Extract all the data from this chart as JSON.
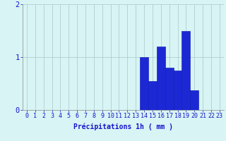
{
  "hours": [
    0,
    1,
    2,
    3,
    4,
    5,
    6,
    7,
    8,
    9,
    10,
    11,
    12,
    13,
    14,
    15,
    16,
    17,
    18,
    19,
    20,
    21,
    22,
    23
  ],
  "values": [
    0,
    0,
    0,
    0,
    0,
    0,
    0,
    0,
    0,
    0,
    0,
    0,
    0,
    0,
    1.0,
    0.55,
    1.2,
    0.8,
    0.75,
    1.5,
    0.38,
    0,
    0,
    0
  ],
  "bar_color": "#1c28d4",
  "bar_edge_color": "#0a14b4",
  "background_color": "#d8f4f4",
  "grid_color": "#aac8c8",
  "xlabel": "Précipitations 1h ( mm )",
  "ylim": [
    0,
    2.0
  ],
  "yticks": [
    0,
    1,
    2
  ],
  "xticks": [
    0,
    1,
    2,
    3,
    4,
    5,
    6,
    7,
    8,
    9,
    10,
    11,
    12,
    13,
    14,
    15,
    16,
    17,
    18,
    19,
    20,
    21,
    22,
    23
  ],
  "xlabel_fontsize": 7,
  "tick_fontsize": 6,
  "label_color": "#1414cc"
}
